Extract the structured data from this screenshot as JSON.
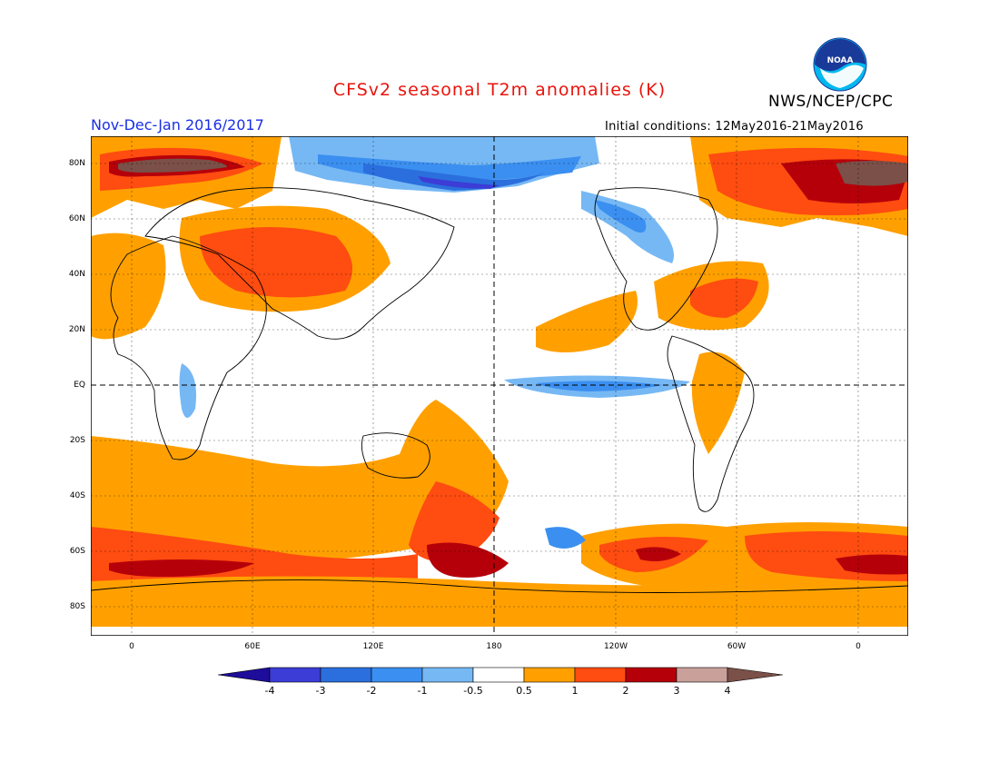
{
  "header": {
    "title": "CFSv2 seasonal T2m anomalies (K)",
    "agency": "NWS/NCEP/CPC",
    "period": "Nov-Dec-Jan 2016/2017",
    "initial_conditions": "Initial conditions: 12May2016-21May2016",
    "logo_text": "NOAA"
  },
  "map": {
    "lat_labels": [
      "80N",
      "60N",
      "40N",
      "20N",
      "EQ",
      "20S",
      "40S",
      "60S",
      "80S"
    ],
    "lon_labels": [
      "0",
      "60E",
      "120E",
      "180",
      "120W",
      "60W",
      "0"
    ]
  },
  "colorbar": {
    "tick_labels": [
      "-4",
      "-3",
      "-2",
      "-1",
      "-0.5",
      "0.5",
      "1",
      "2",
      "3",
      "4"
    ],
    "colors": [
      "#1e0c9a",
      "#3c3cd6",
      "#2a6fdd",
      "#3b8ff0",
      "#76b8f4",
      "#ffffff",
      "#ffa000",
      "#ff4c10",
      "#b5000a",
      "#c9a09a",
      "#7a5048"
    ]
  }
}
